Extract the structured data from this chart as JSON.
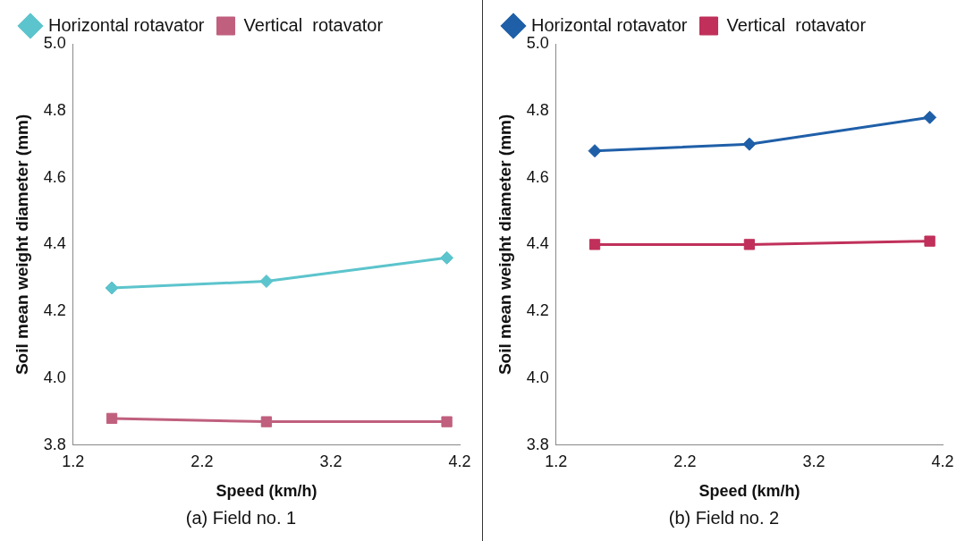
{
  "chart_data": [
    {
      "type": "line",
      "xlabel": "Speed (km/h)",
      "ylabel": "Soil mean weight diameter (mm)",
      "x": [
        1.5,
        2.7,
        4.1
      ],
      "xlim": [
        1.2,
        4.2
      ],
      "xticks": [
        1.2,
        2.2,
        3.2,
        4.2
      ],
      "ylim": [
        3.8,
        5.0
      ],
      "yticks": [
        {
          "value": 3.8,
          "label": "3.8"
        },
        {
          "value": 4.0,
          "label": "4.0"
        },
        {
          "value": 4.2,
          "label": "4.2"
        },
        {
          "value": 4.4,
          "label": "4.4"
        },
        {
          "value": 4.6,
          "label": "4.6"
        },
        {
          "value": 4.8,
          "label": "4.8"
        },
        {
          "value": 5.0,
          "label": "5.0"
        }
      ],
      "grid": false,
      "legend": "top left",
      "annotations": [
        "(a) Field no. 1"
      ],
      "series": [
        {
          "name": "Horizontal rotavator",
          "color": "#5cc4cc",
          "marker": "diamond",
          "values": [
            4.27,
            4.29,
            4.36
          ]
        },
        {
          "name": "Vertical  rotavator",
          "color": "#c0607e",
          "marker": "square",
          "values": [
            3.88,
            3.87,
            3.87
          ]
        }
      ]
    },
    {
      "type": "line",
      "xlabel": "Speed (km/h)",
      "ylabel": "Soil mean weight diameter (mm)",
      "x": [
        1.5,
        2.7,
        4.1
      ],
      "xlim": [
        1.2,
        4.2
      ],
      "xticks": [
        1.2,
        2.2,
        3.2,
        4.2
      ],
      "ylim": [
        3.8,
        5.0
      ],
      "yticks": [
        {
          "value": 3.8,
          "label": "3.8"
        },
        {
          "value": 4.0,
          "label": "4.0"
        },
        {
          "value": 4.2,
          "label": "4.2"
        },
        {
          "value": 4.4,
          "label": "4.4"
        },
        {
          "value": 4.6,
          "label": "4.6"
        },
        {
          "value": 4.8,
          "label": "4.8"
        },
        {
          "value": 5.0,
          "label": "5.0"
        }
      ],
      "grid": false,
      "legend": "top left",
      "annotations": [
        "(b) Field no. 2"
      ],
      "series": [
        {
          "name": "Horizontal rotavator",
          "color": "#1f5fa8",
          "marker": "diamond",
          "values": [
            4.68,
            4.7,
            4.78
          ]
        },
        {
          "name": "Vertical  rotavator",
          "color": "#c0305a",
          "marker": "square",
          "values": [
            4.4,
            4.4,
            4.41
          ]
        }
      ]
    }
  ]
}
